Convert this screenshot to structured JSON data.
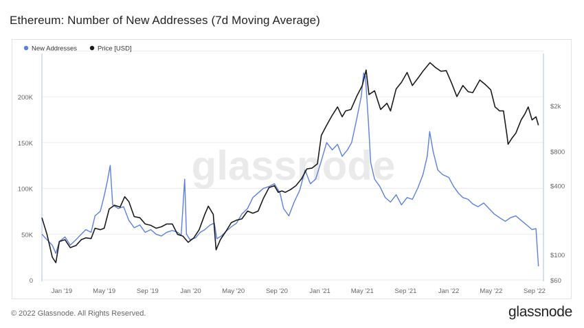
{
  "title": "Ethereum: Number of New Addresses (7d Moving Average)",
  "footer": {
    "copyright": "© 2022 Glassnode. All Rights Reserved.",
    "brand": "glassnode",
    "watermark": "glassnode"
  },
  "colors": {
    "addresses": "#5b7fe0",
    "price": "#1a1a1a",
    "grid": "#ececec",
    "axis_text": "#666666"
  },
  "chart_data": {
    "type": "line",
    "title": "Ethereum: Number of New Addresses (7d Moving Average)",
    "x_ticks": [
      "Jan '19",
      "May '19",
      "Sep '19",
      "Jan '20",
      "May '20",
      "Sep '20",
      "Jan '21",
      "May '21",
      "Sep '21",
      "Jan '22",
      "May '22",
      "Sep '22"
    ],
    "x_range": [
      "2018-11",
      "2022-09"
    ],
    "y_left": {
      "label": "",
      "ticks": [
        "0",
        "50K",
        "100K",
        "150K",
        "200K"
      ],
      "range": [
        0,
        250000
      ],
      "scale": "linear"
    },
    "y_right": {
      "label": "",
      "ticks": [
        "$60",
        "$100",
        "$400",
        "$800",
        "$2k"
      ],
      "tick_values": [
        60,
        100,
        400,
        800,
        2000
      ],
      "range": [
        55,
        5000
      ],
      "scale": "log"
    },
    "legend": {
      "placement": "top-left"
    },
    "grid": true,
    "series": [
      {
        "name": "New Addresses",
        "axis": "left",
        "color": "#5b7fe0",
        "points": [
          [
            "2018-11-05",
            50000
          ],
          [
            "2018-11-20",
            44000
          ],
          [
            "2018-12-05",
            38000
          ],
          [
            "2018-12-15",
            29000
          ],
          [
            "2018-12-25",
            42000
          ],
          [
            "2019-01-10",
            47000
          ],
          [
            "2019-01-25",
            38000
          ],
          [
            "2019-02-10",
            44000
          ],
          [
            "2019-02-25",
            50000
          ],
          [
            "2019-03-10",
            55000
          ],
          [
            "2019-03-25",
            52000
          ],
          [
            "2019-04-05",
            70000
          ],
          [
            "2019-04-20",
            75000
          ],
          [
            "2019-05-01",
            92000
          ],
          [
            "2019-05-10",
            108000
          ],
          [
            "2019-05-18",
            125000
          ],
          [
            "2019-05-25",
            82000
          ],
          [
            "2019-06-10",
            78000
          ],
          [
            "2019-06-25",
            80000
          ],
          [
            "2019-07-10",
            65000
          ],
          [
            "2019-07-25",
            57000
          ],
          [
            "2019-08-10",
            60000
          ],
          [
            "2019-08-25",
            52000
          ],
          [
            "2019-09-10",
            55000
          ],
          [
            "2019-09-25",
            50000
          ],
          [
            "2019-10-10",
            48000
          ],
          [
            "2019-10-25",
            52000
          ],
          [
            "2019-11-10",
            54000
          ],
          [
            "2019-11-25",
            52000
          ],
          [
            "2019-12-05",
            49000
          ],
          [
            "2019-12-15",
            110000
          ],
          [
            "2019-12-20",
            50000
          ],
          [
            "2019-12-30",
            44000
          ],
          [
            "2020-01-15",
            46000
          ],
          [
            "2020-01-28",
            52000
          ],
          [
            "2020-02-10",
            55000
          ],
          [
            "2020-02-25",
            60000
          ],
          [
            "2020-03-08",
            62000
          ],
          [
            "2020-03-15",
            45000
          ],
          [
            "2020-03-28",
            48000
          ],
          [
            "2020-04-10",
            53000
          ],
          [
            "2020-04-25",
            58000
          ],
          [
            "2020-05-10",
            62000
          ],
          [
            "2020-05-25",
            72000
          ],
          [
            "2020-06-10",
            78000
          ],
          [
            "2020-06-25",
            90000
          ],
          [
            "2020-07-10",
            95000
          ],
          [
            "2020-07-25",
            100000
          ],
          [
            "2020-08-10",
            102000
          ],
          [
            "2020-08-25",
            105000
          ],
          [
            "2020-09-10",
            95000
          ],
          [
            "2020-09-20",
            78000
          ],
          [
            "2020-10-05",
            70000
          ],
          [
            "2020-10-20",
            85000
          ],
          [
            "2020-11-05",
            98000
          ],
          [
            "2020-11-20",
            120000
          ],
          [
            "2020-12-05",
            105000
          ],
          [
            "2020-12-20",
            110000
          ],
          [
            "2021-01-05",
            130000
          ],
          [
            "2021-01-20",
            150000
          ],
          [
            "2021-02-05",
            142000
          ],
          [
            "2021-02-20",
            148000
          ],
          [
            "2021-03-05",
            135000
          ],
          [
            "2021-03-20",
            142000
          ],
          [
            "2021-04-01",
            150000
          ],
          [
            "2021-04-15",
            175000
          ],
          [
            "2021-04-28",
            200000
          ],
          [
            "2021-05-05",
            226000
          ],
          [
            "2021-05-10",
            222000
          ],
          [
            "2021-05-18",
            175000
          ],
          [
            "2021-05-25",
            128000
          ],
          [
            "2021-06-05",
            110000
          ],
          [
            "2021-06-20",
            102000
          ],
          [
            "2021-07-05",
            90000
          ],
          [
            "2021-07-20",
            85000
          ],
          [
            "2021-08-05",
            93000
          ],
          [
            "2021-08-20",
            82000
          ],
          [
            "2021-09-05",
            90000
          ],
          [
            "2021-09-20",
            88000
          ],
          [
            "2021-10-05",
            100000
          ],
          [
            "2021-10-20",
            115000
          ],
          [
            "2021-11-01",
            135000
          ],
          [
            "2021-11-08",
            162000
          ],
          [
            "2021-11-18",
            140000
          ],
          [
            "2021-12-01",
            120000
          ],
          [
            "2021-12-15",
            115000
          ],
          [
            "2022-01-01",
            112000
          ],
          [
            "2022-01-15",
            102000
          ],
          [
            "2022-01-28",
            95000
          ],
          [
            "2022-02-10",
            90000
          ],
          [
            "2022-02-25",
            88000
          ],
          [
            "2022-03-10",
            83000
          ],
          [
            "2022-03-25",
            80000
          ],
          [
            "2022-04-10",
            84000
          ],
          [
            "2022-04-25",
            78000
          ],
          [
            "2022-05-10",
            72000
          ],
          [
            "2022-05-25",
            68000
          ],
          [
            "2022-06-10",
            64000
          ],
          [
            "2022-06-25",
            68000
          ],
          [
            "2022-07-10",
            70000
          ],
          [
            "2022-07-25",
            65000
          ],
          [
            "2022-08-10",
            60000
          ],
          [
            "2022-08-25",
            55000
          ],
          [
            "2022-09-05",
            56000
          ],
          [
            "2022-09-12",
            15000
          ]
        ]
      },
      {
        "name": "Price [USD]",
        "axis": "right",
        "color": "#1a1a1a",
        "points": [
          [
            "2018-11-05",
            210
          ],
          [
            "2018-11-20",
            150
          ],
          [
            "2018-12-05",
            95
          ],
          [
            "2018-12-15",
            85
          ],
          [
            "2018-12-25",
            130
          ],
          [
            "2019-01-10",
            135
          ],
          [
            "2019-01-25",
            115
          ],
          [
            "2019-02-10",
            120
          ],
          [
            "2019-02-25",
            135
          ],
          [
            "2019-03-10",
            140
          ],
          [
            "2019-03-25",
            138
          ],
          [
            "2019-04-05",
            170
          ],
          [
            "2019-04-20",
            165
          ],
          [
            "2019-05-01",
            170
          ],
          [
            "2019-05-15",
            250
          ],
          [
            "2019-05-30",
            270
          ],
          [
            "2019-06-15",
            260
          ],
          [
            "2019-06-28",
            320
          ],
          [
            "2019-07-10",
            290
          ],
          [
            "2019-07-25",
            215
          ],
          [
            "2019-08-10",
            210
          ],
          [
            "2019-08-25",
            185
          ],
          [
            "2019-09-10",
            180
          ],
          [
            "2019-09-25",
            170
          ],
          [
            "2019-10-10",
            175
          ],
          [
            "2019-10-25",
            185
          ],
          [
            "2019-11-10",
            185
          ],
          [
            "2019-11-25",
            150
          ],
          [
            "2019-12-10",
            145
          ],
          [
            "2019-12-25",
            128
          ],
          [
            "2020-01-10",
            140
          ],
          [
            "2020-01-25",
            165
          ],
          [
            "2020-02-10",
            225
          ],
          [
            "2020-02-20",
            265
          ],
          [
            "2020-03-05",
            225
          ],
          [
            "2020-03-13",
            110
          ],
          [
            "2020-03-25",
            135
          ],
          [
            "2020-04-10",
            160
          ],
          [
            "2020-04-25",
            190
          ],
          [
            "2020-05-10",
            200
          ],
          [
            "2020-05-25",
            205
          ],
          [
            "2020-06-10",
            240
          ],
          [
            "2020-06-25",
            230
          ],
          [
            "2020-07-10",
            240
          ],
          [
            "2020-07-25",
            310
          ],
          [
            "2020-08-10",
            385
          ],
          [
            "2020-08-25",
            400
          ],
          [
            "2020-09-05",
            350
          ],
          [
            "2020-09-15",
            360
          ],
          [
            "2020-09-25",
            350
          ],
          [
            "2020-10-10",
            370
          ],
          [
            "2020-10-25",
            400
          ],
          [
            "2020-11-10",
            460
          ],
          [
            "2020-11-25",
            560
          ],
          [
            "2020-12-10",
            570
          ],
          [
            "2020-12-25",
            620
          ],
          [
            "2021-01-05",
            1100
          ],
          [
            "2021-01-20",
            1350
          ],
          [
            "2021-02-05",
            1650
          ],
          [
            "2021-02-20",
            1950
          ],
          [
            "2021-03-05",
            1600
          ],
          [
            "2021-03-15",
            1800
          ],
          [
            "2021-03-30",
            1850
          ],
          [
            "2021-04-15",
            2400
          ],
          [
            "2021-05-01",
            3000
          ],
          [
            "2021-05-12",
            4100
          ],
          [
            "2021-05-20",
            2500
          ],
          [
            "2021-06-05",
            2700
          ],
          [
            "2021-06-22",
            1850
          ],
          [
            "2021-07-10",
            2100
          ],
          [
            "2021-07-20",
            1800
          ],
          [
            "2021-08-05",
            2800
          ],
          [
            "2021-08-20",
            3200
          ],
          [
            "2021-09-05",
            3900
          ],
          [
            "2021-09-20",
            3000
          ],
          [
            "2021-10-05",
            3450
          ],
          [
            "2021-10-20",
            4000
          ],
          [
            "2021-11-09",
            4750
          ],
          [
            "2021-11-25",
            4300
          ],
          [
            "2021-12-10",
            4000
          ],
          [
            "2021-12-25",
            4050
          ],
          [
            "2022-01-10",
            3100
          ],
          [
            "2022-01-24",
            2400
          ],
          [
            "2022-02-10",
            3000
          ],
          [
            "2022-02-25",
            2650
          ],
          [
            "2022-03-10",
            2600
          ],
          [
            "2022-03-30",
            3350
          ],
          [
            "2022-04-15",
            3050
          ],
          [
            "2022-04-30",
            2750
          ],
          [
            "2022-05-12",
            1950
          ],
          [
            "2022-05-25",
            1800
          ],
          [
            "2022-06-05",
            1800
          ],
          [
            "2022-06-15",
            1100
          ],
          [
            "2022-06-18",
            920
          ],
          [
            "2022-06-30",
            1050
          ],
          [
            "2022-07-10",
            1150
          ],
          [
            "2022-07-25",
            1500
          ],
          [
            "2022-08-05",
            1700
          ],
          [
            "2022-08-14",
            1950
          ],
          [
            "2022-08-25",
            1500
          ],
          [
            "2022-09-05",
            1600
          ],
          [
            "2022-09-12",
            1350
          ]
        ]
      }
    ]
  }
}
